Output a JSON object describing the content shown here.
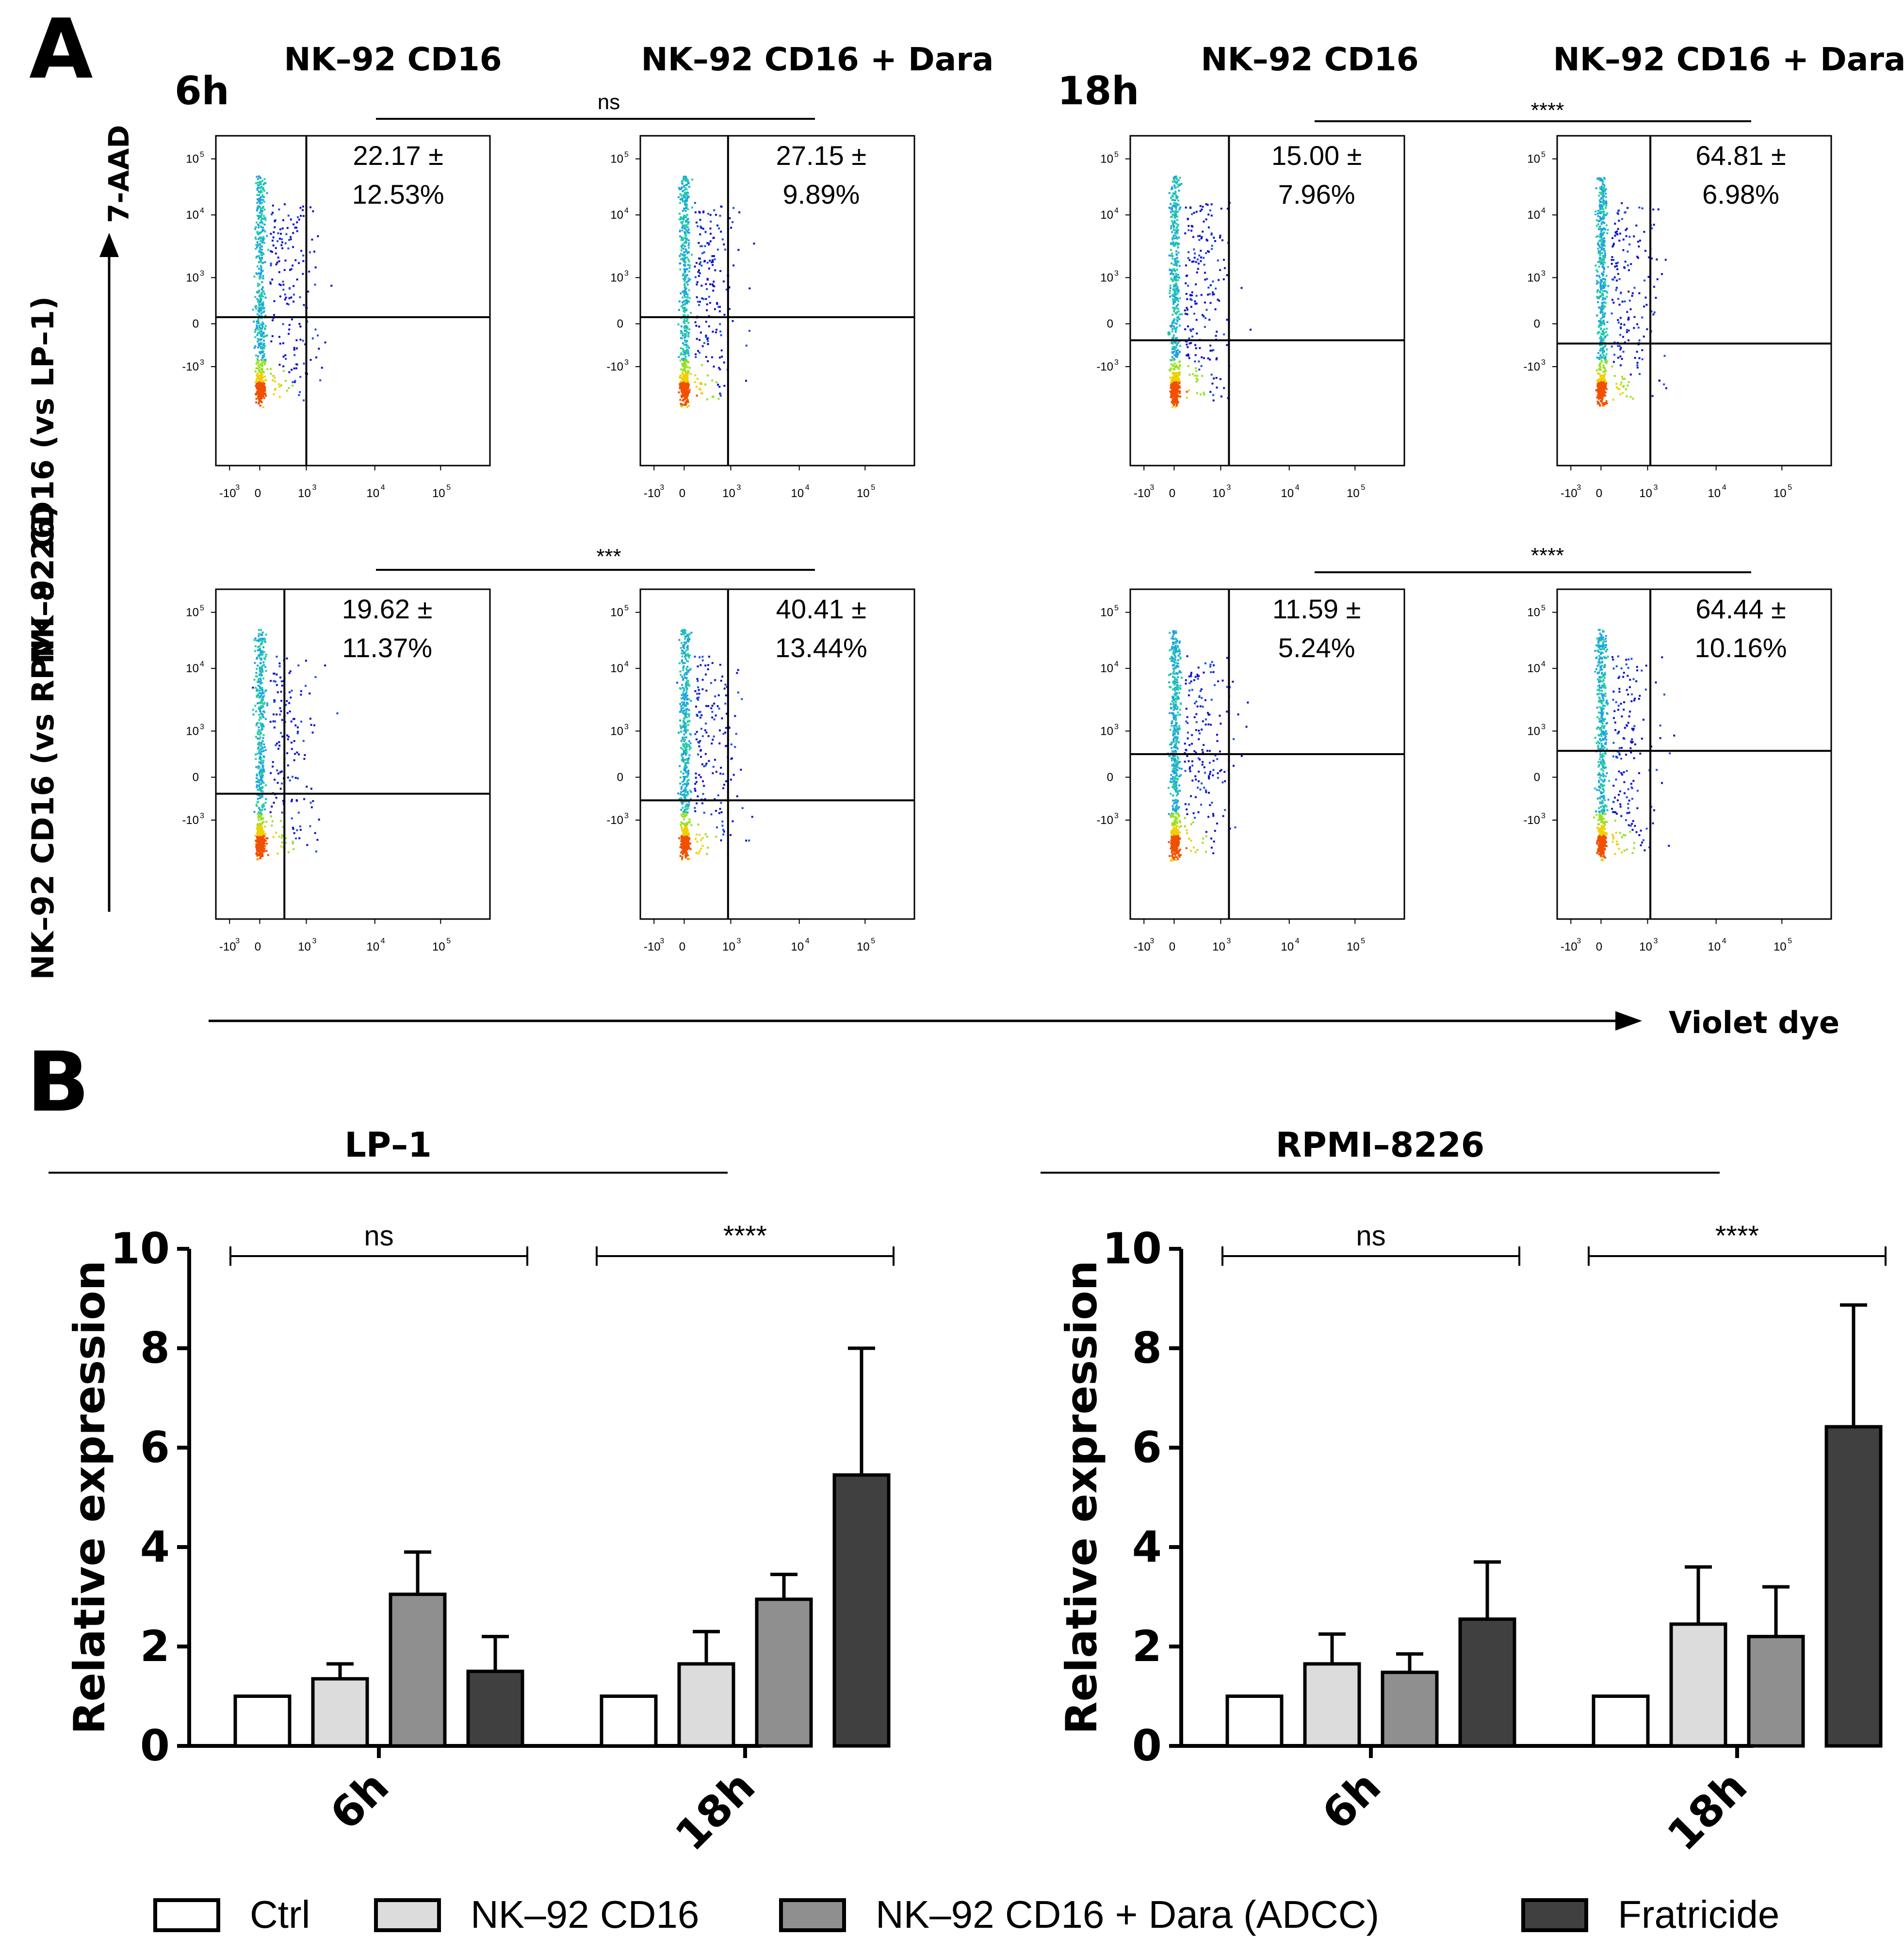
{
  "panel_a": {
    "label": "A",
    "timepoints": [
      {
        "label": "6h",
        "columns": [
          "NK–92 CD16",
          "NK–92 CD16 + Dara"
        ]
      },
      {
        "label": "18h",
        "columns": [
          "NK–92 CD16",
          "NK–92 CD16 + Dara"
        ]
      }
    ],
    "row_labels": [
      "NK–92 CD16 (vs LP–1)",
      "NK–92 CD16 (vs RPMI–8226)"
    ],
    "y_axis_label": "7-AAD",
    "x_axis_label": "Violet dye",
    "significance": {
      "6h_row1": "ns",
      "6h_row2": "***",
      "18h_row1": "****",
      "18h_row2": "****"
    },
    "y_ticks": [
      "10",
      "10",
      "10",
      "0",
      "-10"
    ],
    "y_tick_exponents": [
      "5",
      "4",
      "3",
      "",
      "3"
    ],
    "x_ticks": [
      "-10",
      "0",
      "10",
      "10",
      "10"
    ],
    "x_tick_exponents": [
      "3",
      "",
      "3",
      "4",
      "5"
    ],
    "plots": [
      {
        "row": 0,
        "time": "6h",
        "condition": "NK–92 CD16",
        "value_line1": "22.17 ±",
        "value_line2": "12.53%"
      },
      {
        "row": 0,
        "time": "6h",
        "condition": "NK–92 CD16 + Dara",
        "value_line1": "27.15 ±",
        "value_line2": "9.89%"
      },
      {
        "row": 0,
        "time": "18h",
        "condition": "NK–92 CD16",
        "value_line1": "15.00 ±",
        "value_line2": "7.96%"
      },
      {
        "row": 0,
        "time": "18h",
        "condition": "NK–92 CD16 + Dara",
        "value_line1": "64.81 ±",
        "value_line2": "6.98%"
      },
      {
        "row": 1,
        "time": "6h",
        "condition": "NK–92 CD16",
        "value_line1": "19.62 ±",
        "value_line2": "11.37%"
      },
      {
        "row": 1,
        "time": "6h",
        "condition": "NK–92 CD16 + Dara",
        "value_line1": "40.41 ±",
        "value_line2": "13.44%"
      },
      {
        "row": 1,
        "time": "18h",
        "condition": "NK–92 CD16",
        "value_line1": "11.59 ±",
        "value_line2": "5.24%"
      },
      {
        "row": 1,
        "time": "18h",
        "condition": "NK–92 CD16 + Dara",
        "value_line1": "64.44 ±",
        "value_line2": "10.16%"
      }
    ]
  },
  "panel_b": {
    "label": "B"
  },
  "chart_data": [
    {
      "type": "bar",
      "title": "LP–1",
      "ylabel": "Relative expression",
      "xlabel": "",
      "categories": [
        "6h",
        "18h"
      ],
      "ylim": [
        0,
        10
      ],
      "yticks": [
        0,
        2,
        4,
        6,
        8,
        10
      ],
      "series": [
        {
          "name": "Ctrl",
          "values": [
            1.0,
            1.0
          ],
          "errors": [
            0,
            0
          ]
        },
        {
          "name": "NK–92 CD16",
          "values": [
            1.35,
            1.65
          ],
          "errors": [
            0.3,
            0.65
          ]
        },
        {
          "name": "NK–92 CD16 + Dara (ADCC)",
          "values": [
            3.05,
            2.95
          ],
          "errors": [
            0.85,
            0.5
          ]
        },
        {
          "name": "Fratricide",
          "values": [
            1.5,
            5.45
          ],
          "errors": [
            0.7,
            2.55
          ]
        }
      ],
      "significance": [
        {
          "group": "6h",
          "label": "ns"
        },
        {
          "group": "18h",
          "label": "****"
        }
      ]
    },
    {
      "type": "bar",
      "title": "RPMI–8226",
      "ylabel": "Relative expression",
      "xlabel": "",
      "categories": [
        "6h",
        "18h"
      ],
      "ylim": [
        0,
        10
      ],
      "yticks": [
        0,
        2,
        4,
        6,
        8,
        10
      ],
      "series": [
        {
          "name": "Ctrl",
          "values": [
            1.0,
            1.0
          ],
          "errors": [
            0,
            0
          ]
        },
        {
          "name": "NK–92 CD16",
          "values": [
            1.65,
            2.45
          ],
          "errors": [
            0.6,
            1.15
          ]
        },
        {
          "name": "NK–92 CD16 + Dara (ADCC)",
          "values": [
            1.48,
            2.2
          ],
          "errors": [
            0.37,
            1.0
          ]
        },
        {
          "name": "Fratricide",
          "values": [
            2.55,
            6.42
          ],
          "errors": [
            1.15,
            2.45
          ]
        }
      ],
      "significance": [
        {
          "group": "6h",
          "label": "ns"
        },
        {
          "group": "18h",
          "label": "****"
        }
      ]
    }
  ],
  "legend": [
    {
      "label": "Ctrl",
      "color": "#ffffff"
    },
    {
      "label": "NK–92 CD16",
      "color": "#dcdcdc"
    },
    {
      "label": "NK–92 CD16 + Dara (ADCC)",
      "color": "#8f8f8f"
    },
    {
      "label": "Fratricide",
      "color": "#404040"
    }
  ],
  "colors": {
    "bar_edge": "#000000",
    "axis": "#000000"
  }
}
